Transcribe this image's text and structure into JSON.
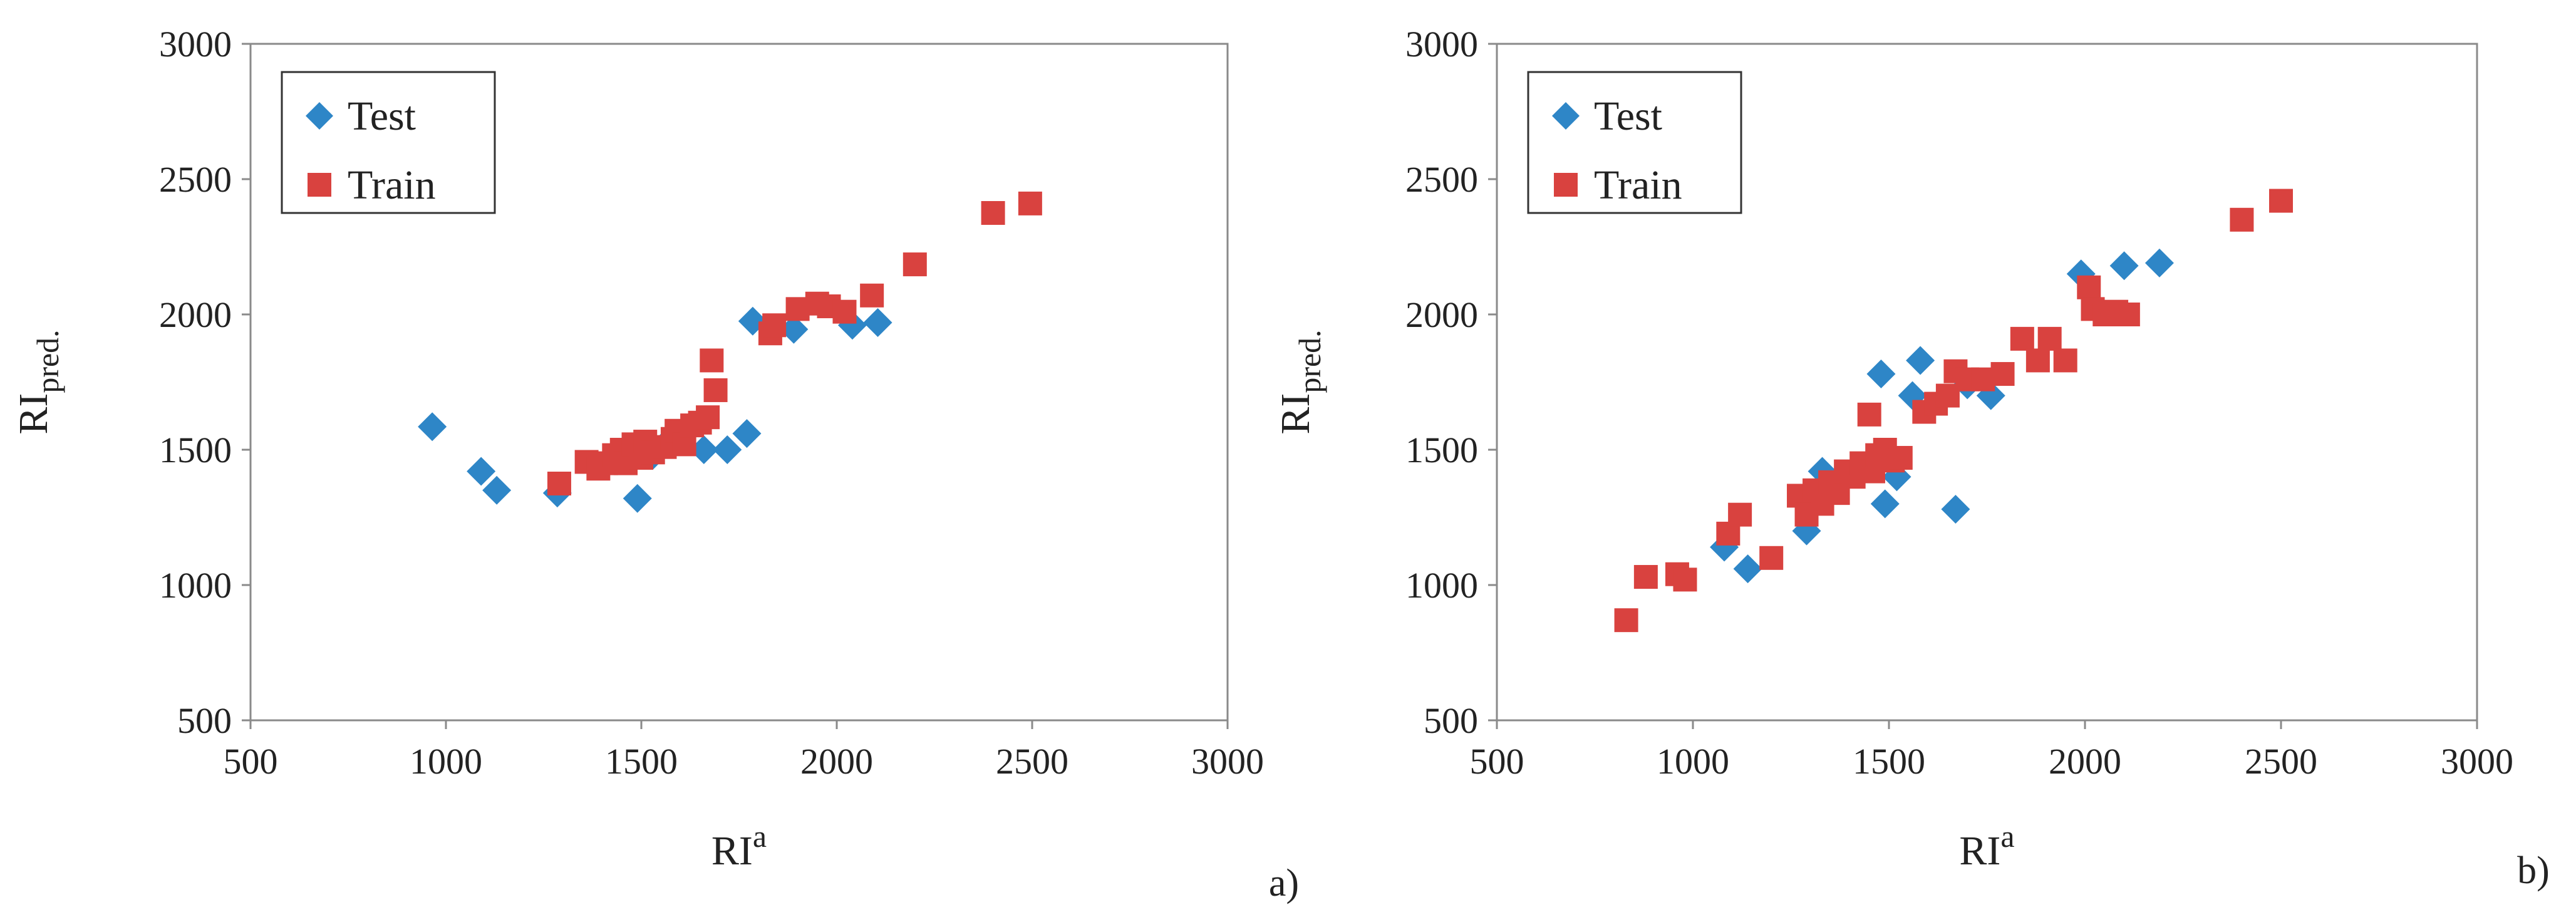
{
  "figure": {
    "panels": [
      "a)",
      "b)"
    ]
  },
  "chart_data": [
    {
      "type": "scatter",
      "panel_label": "a)",
      "xlabel_main": "RI",
      "xlabel_sup": "a",
      "ylabel_main": "RI",
      "ylabel_sub": "pred.",
      "xlim": [
        500,
        3000
      ],
      "ylim": [
        500,
        3000
      ],
      "xticks": [
        "500",
        "1000",
        "1500",
        "2000",
        "2500",
        "3000"
      ],
      "yticks": [
        "500",
        "1000",
        "1500",
        "2000",
        "2500",
        "3000"
      ],
      "grid": false,
      "legend_position": "top-left",
      "series": [
        {
          "name": "Test",
          "marker": "diamond",
          "color": "#2e86c7",
          "points": [
            [
              965,
              1585
            ],
            [
              1090,
              1420
            ],
            [
              1130,
              1350
            ],
            [
              1285,
              1340
            ],
            [
              1490,
              1320
            ],
            [
              1530,
              1480
            ],
            [
              1560,
              1520
            ],
            [
              1660,
              1500
            ],
            [
              1720,
              1500
            ],
            [
              1770,
              1560
            ],
            [
              1785,
              1975
            ],
            [
              1890,
              1945
            ],
            [
              2040,
              1960
            ],
            [
              2105,
              1970
            ]
          ]
        },
        {
          "name": "Train",
          "marker": "square",
          "color": "#d9423f",
          "points": [
            [
              1290,
              1375
            ],
            [
              1360,
              1455
            ],
            [
              1390,
              1430
            ],
            [
              1410,
              1450
            ],
            [
              1430,
              1480
            ],
            [
              1450,
              1500
            ],
            [
              1460,
              1450
            ],
            [
              1480,
              1520
            ],
            [
              1500,
              1470
            ],
            [
              1510,
              1530
            ],
            [
              1530,
              1490
            ],
            [
              1560,
              1510
            ],
            [
              1580,
              1540
            ],
            [
              1590,
              1570
            ],
            [
              1610,
              1520
            ],
            [
              1630,
              1590
            ],
            [
              1650,
              1600
            ],
            [
              1670,
              1620
            ],
            [
              1680,
              1830
            ],
            [
              1690,
              1720
            ],
            [
              1830,
              1930
            ],
            [
              1840,
              1960
            ],
            [
              1900,
              2020
            ],
            [
              1950,
              2040
            ],
            [
              1980,
              2030
            ],
            [
              2020,
              2010
            ],
            [
              2090,
              2070
            ],
            [
              2200,
              2185
            ],
            [
              2400,
              2375
            ],
            [
              2495,
              2410
            ]
          ]
        }
      ]
    },
    {
      "type": "scatter",
      "panel_label": "b)",
      "xlabel_main": "RI",
      "xlabel_sup": "a",
      "ylabel_main": "RI",
      "ylabel_sub": "pred.",
      "xlim": [
        500,
        3000
      ],
      "ylim": [
        500,
        3000
      ],
      "xticks": [
        "500",
        "1000",
        "1500",
        "2000",
        "2500",
        "3000"
      ],
      "yticks": [
        "500",
        "1000",
        "1500",
        "2000",
        "2500",
        "3000"
      ],
      "grid": false,
      "legend_position": "top-left",
      "series": [
        {
          "name": "Test",
          "marker": "diamond",
          "color": "#2e86c7",
          "points": [
            [
              1080,
              1140
            ],
            [
              1140,
              1060
            ],
            [
              1290,
              1200
            ],
            [
              1330,
              1420
            ],
            [
              1480,
              1780
            ],
            [
              1490,
              1300
            ],
            [
              1520,
              1400
            ],
            [
              1560,
              1700
            ],
            [
              1580,
              1830
            ],
            [
              1670,
              1280
            ],
            [
              1700,
              1740
            ],
            [
              1760,
              1700
            ],
            [
              1990,
              2150
            ],
            [
              2100,
              2180
            ],
            [
              2190,
              2190
            ]
          ]
        },
        {
          "name": "Train",
          "marker": "square",
          "color": "#d9423f",
          "points": [
            [
              830,
              870
            ],
            [
              880,
              1030
            ],
            [
              960,
              1040
            ],
            [
              980,
              1020
            ],
            [
              1090,
              1190
            ],
            [
              1120,
              1260
            ],
            [
              1200,
              1100
            ],
            [
              1270,
              1330
            ],
            [
              1290,
              1260
            ],
            [
              1310,
              1350
            ],
            [
              1330,
              1300
            ],
            [
              1350,
              1380
            ],
            [
              1370,
              1340
            ],
            [
              1390,
              1420
            ],
            [
              1410,
              1400
            ],
            [
              1430,
              1450
            ],
            [
              1450,
              1630
            ],
            [
              1460,
              1420
            ],
            [
              1470,
              1480
            ],
            [
              1490,
              1500
            ],
            [
              1510,
              1460
            ],
            [
              1530,
              1470
            ],
            [
              1590,
              1640
            ],
            [
              1620,
              1670
            ],
            [
              1650,
              1700
            ],
            [
              1670,
              1790
            ],
            [
              1700,
              1760
            ],
            [
              1740,
              1760
            ],
            [
              1790,
              1780
            ],
            [
              1840,
              1910
            ],
            [
              1880,
              1830
            ],
            [
              1910,
              1910
            ],
            [
              1950,
              1830
            ],
            [
              2010,
              2100
            ],
            [
              2020,
              2020
            ],
            [
              2050,
              2000
            ],
            [
              2080,
              2010
            ],
            [
              2110,
              2000
            ],
            [
              2400,
              2350
            ],
            [
              2500,
              2420
            ]
          ]
        }
      ]
    }
  ]
}
